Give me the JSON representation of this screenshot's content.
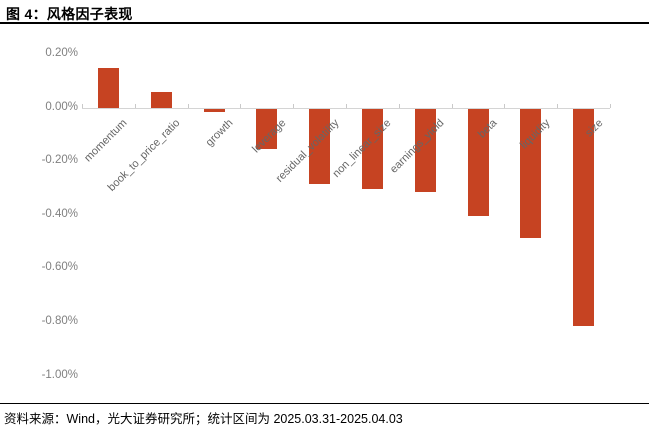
{
  "header": {
    "title": "图 4：风格因子表现"
  },
  "footer": {
    "source": "资料来源：Wind，光大证券研究所；统计区间为 2025.03.31-2025.04.03"
  },
  "colors": {
    "bar": "#c64322",
    "axis_line": "#d4d4d4",
    "tick_mark": "#c9c9c9",
    "y_label_text": "#808080",
    "category_label_text": "#666666",
    "title_text": "#000000",
    "rule": "#000000",
    "background": "#ffffff"
  },
  "chart_data": {
    "type": "bar",
    "title": "风格因子表现",
    "categories": [
      "momentum",
      "book_to_price_ratio",
      "growth",
      "leverage",
      "residual_volatility",
      "non_linear_size",
      "earnings_yield",
      "beta",
      "liquidity",
      "size"
    ],
    "values": [
      0.15,
      0.06,
      -0.01,
      -0.15,
      -0.28,
      -0.3,
      -0.31,
      -0.4,
      -0.48,
      -0.81
    ],
    "unit": "%",
    "xlabel": "",
    "ylabel": "",
    "ylim": [
      -1.0,
      0.2
    ],
    "yticks": [
      0.2,
      0.0,
      -0.2,
      -0.4,
      -0.6,
      -0.8,
      -1.0
    ],
    "ytick_labels": [
      "0.20%",
      "0.00%",
      "-0.20%",
      "-0.40%",
      "-0.60%",
      "-0.80%",
      "-1.00%"
    ],
    "grid": false,
    "legend": "none",
    "bar_orientation": "vertical",
    "category_label_rotation_deg": 45
  }
}
